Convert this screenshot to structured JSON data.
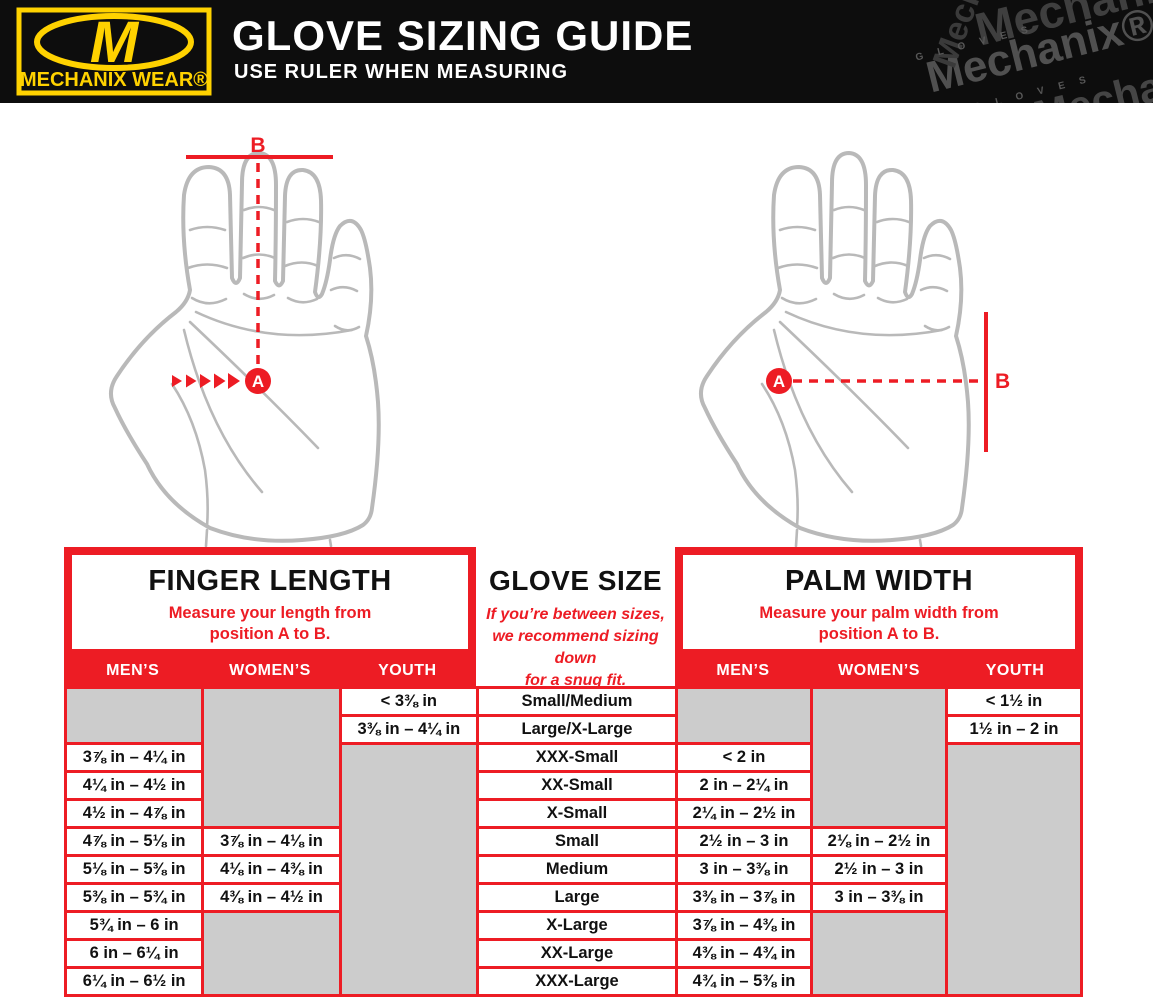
{
  "header": {
    "title": "GLOVE SIZING GUIDE",
    "subtitle": "USE RULER WHEN MEASURING",
    "logo": {
      "monogram": "M",
      "brand": "MECHANIX WEAR®"
    },
    "watermark": {
      "word": "Mechanix",
      "word_reg": "Mechanix®",
      "gloves": "G L O V E S"
    },
    "colors": {
      "banner_bg": "#0d0d0d",
      "brand_yellow": "#ffd200",
      "accent_red": "#ed1c24",
      "empty_cell_gray": "#cccccc",
      "hand_outline_gray": "#b9b9b9"
    }
  },
  "diagram": {
    "finger_length_hand": {
      "label_a": "A",
      "label_b": "B"
    },
    "palm_width_hand": {
      "label_a": "A",
      "label_b": "B"
    }
  },
  "table": {
    "sections": [
      {
        "title": "FINGER LENGTH",
        "subtitle_lines": [
          "Measure your length from",
          "position A to B."
        ],
        "columns": [
          "MEN’S",
          "WOMEN’S",
          "YOUTH"
        ]
      },
      {
        "title": "GLOVE SIZE",
        "subtitle_lines": [
          "If you’re between sizes,",
          "we recommend sizing down",
          "for a snug fit."
        ]
      },
      {
        "title": "PALM WIDTH",
        "subtitle_lines": [
          "Measure your palm width from",
          "position A to B."
        ],
        "columns": [
          "MEN’S",
          "WOMEN’S",
          "YOUTH"
        ]
      }
    ],
    "glove_size": {
      "cells": [
        "Small/Medium",
        "Large/X-Large",
        "XXX-Small",
        "XX-Small",
        "X-Small",
        "Small",
        "Medium",
        "Large",
        "X-Large",
        "XX-Large",
        "XXX-Large"
      ]
    },
    "finger_length": {
      "mens": [
        {
          "gray": 2
        },
        {
          "t": "3⅞ in – 4¼ in"
        },
        {
          "t": "4¼ in – 4½ in"
        },
        {
          "t": "4½ in – 4⅞ in"
        },
        {
          "t": "4⅞ in – 5⅛ in"
        },
        {
          "t": "5⅛ in – 5⅜ in"
        },
        {
          "t": "5⅜ in – 5¾ in"
        },
        {
          "t": "5¾ in – 6 in"
        },
        {
          "t": "6 in – 6¼ in"
        },
        {
          "t": "6¼ in – 6½ in"
        }
      ],
      "womens": [
        {
          "gray": 5
        },
        {
          "t": "3⅞ in – 4⅛ in"
        },
        {
          "t": "4⅛ in – 4⅜ in"
        },
        {
          "t": "4⅜ in – 4½ in"
        },
        {
          "gray": 3
        }
      ],
      "youth": [
        {
          "t": "< 3⅜ in"
        },
        {
          "t": "3⅜ in – 4¼ in"
        },
        {
          "gray": 9
        }
      ]
    },
    "palm_width": {
      "mens": [
        {
          "gray": 2
        },
        {
          "t": "< 2 in"
        },
        {
          "t": "2 in – 2¼ in"
        },
        {
          "t": "2¼ in – 2½ in"
        },
        {
          "t": "2½ in – 3 in"
        },
        {
          "t": "3 in – 3⅜ in"
        },
        {
          "t": "3⅜ in – 3⅞ in"
        },
        {
          "t": "3⅞ in – 4⅜ in"
        },
        {
          "t": "4⅜ in – 4¾ in"
        },
        {
          "t": "4¾ in – 5⅜ in"
        }
      ],
      "womens": [
        {
          "gray": 5
        },
        {
          "t": "2⅛ in – 2½ in"
        },
        {
          "t": "2½ in – 3 in"
        },
        {
          "t": "3 in – 3⅜ in"
        },
        {
          "gray": 3
        }
      ],
      "youth": [
        {
          "t": "< 1½ in"
        },
        {
          "t": "1½ in – 2 in"
        },
        {
          "gray": 9
        }
      ]
    }
  }
}
